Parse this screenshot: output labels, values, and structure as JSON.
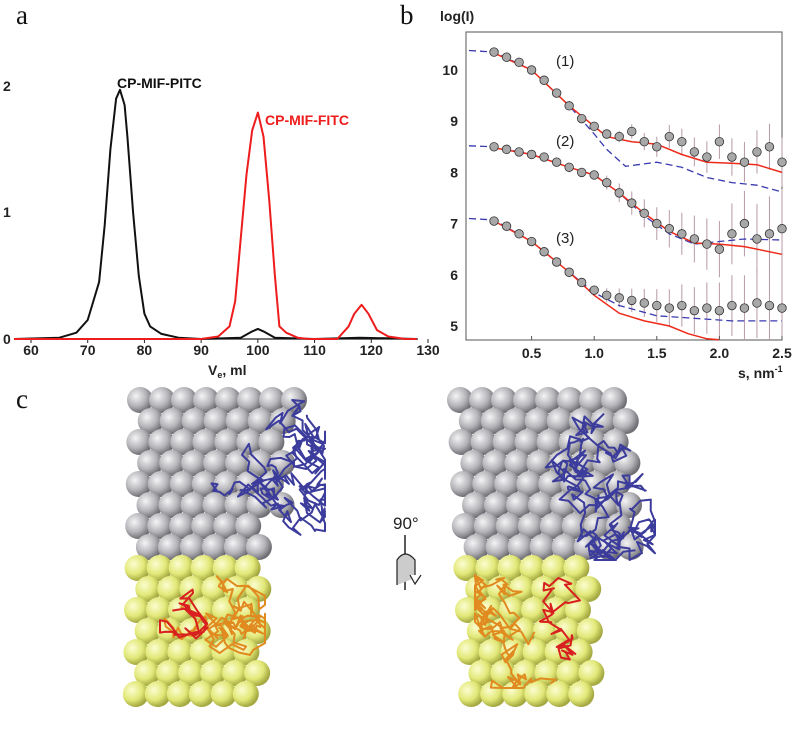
{
  "panels": {
    "a": "a",
    "b": "b",
    "c": "c"
  },
  "rotation_label": "90°",
  "chart_data": [
    {
      "type": "line",
      "panel": "a",
      "xlabel": "V",
      "xlabel_sub": "e",
      "xlabel_unit": ", ml",
      "ylabel": "",
      "xlim": [
        57,
        128
      ],
      "ylim": [
        0,
        2
      ],
      "xticks": [
        60,
        70,
        80,
        90,
        100,
        110,
        120,
        130
      ],
      "yticks": [
        0,
        1,
        2
      ],
      "grid": false,
      "series": [
        {
          "name": "CP-MIF-PITC",
          "color": "#111111",
          "points": [
            [
              57,
              0
            ],
            [
              65,
              0.01
            ],
            [
              68,
              0.05
            ],
            [
              70,
              0.15
            ],
            [
              72,
              0.45
            ],
            [
              73,
              0.9
            ],
            [
              74,
              1.5
            ],
            [
              75,
              1.9
            ],
            [
              75.7,
              1.97
            ],
            [
              76.5,
              1.85
            ],
            [
              77,
              1.6
            ],
            [
              78,
              1.0
            ],
            [
              79,
              0.5
            ],
            [
              80,
              0.2
            ],
            [
              81,
              0.1
            ],
            [
              83,
              0.04
            ],
            [
              86,
              0.01
            ],
            [
              90,
              0
            ],
            [
              97,
              0.01
            ],
            [
              99,
              0.06
            ],
            [
              100,
              0.08
            ],
            [
              101,
              0.06
            ],
            [
              103,
              0.01
            ],
            [
              110,
              0
            ],
            [
              118,
              0.01
            ],
            [
              128,
              0
            ]
          ]
        },
        {
          "name": "CP-MIF-FITC",
          "color": "#ee1c1c",
          "points": [
            [
              57,
              0
            ],
            [
              90,
              0
            ],
            [
              93,
              0.02
            ],
            [
              95,
              0.1
            ],
            [
              96,
              0.3
            ],
            [
              97,
              0.8
            ],
            [
              98,
              1.3
            ],
            [
              99,
              1.65
            ],
            [
              100,
              1.79
            ],
            [
              101,
              1.6
            ],
            [
              102,
              1.1
            ],
            [
              103,
              0.5
            ],
            [
              103.8,
              0.1
            ],
            [
              105,
              0.05
            ],
            [
              107,
              0.01
            ],
            [
              109,
              0
            ],
            [
              114,
              0
            ],
            [
              116,
              0.1
            ],
            [
              117,
              0.2
            ],
            [
              118.3,
              0.27
            ],
            [
              119.5,
              0.2
            ],
            [
              121,
              0.07
            ],
            [
              123,
              0.02
            ],
            [
              126,
              0
            ],
            [
              128,
              0
            ]
          ]
        }
      ]
    },
    {
      "type": "scatter",
      "panel": "b",
      "ylabel": "log(I)",
      "xlabel": "s, nm",
      "xlabel_sup": "-1",
      "xlim": [
        0,
        2.5
      ],
      "ylim": [
        4.73,
        10.74
      ],
      "xticks": [
        "0.5",
        "1.0",
        "1.5",
        "2.0",
        "2.5"
      ],
      "yticks": [
        5,
        6,
        7,
        8,
        9,
        10
      ],
      "grid": false,
      "curves": [
        {
          "label": "(1)",
          "points": [
            [
              0.2,
              10.35
            ],
            [
              0.3,
              10.25
            ],
            [
              0.4,
              10.15
            ],
            [
              0.5,
              10.0
            ],
            [
              0.6,
              9.8
            ],
            [
              0.7,
              9.55
            ],
            [
              0.8,
              9.3
            ],
            [
              0.9,
              9.05
            ],
            [
              1.0,
              8.9
            ],
            [
              1.1,
              8.75
            ],
            [
              1.2,
              8.7
            ],
            [
              1.3,
              8.8
            ],
            [
              1.4,
              8.6
            ],
            [
              1.5,
              8.5
            ],
            [
              1.6,
              8.7
            ],
            [
              1.7,
              8.6
            ],
            [
              1.8,
              8.4
            ],
            [
              1.9,
              8.3
            ],
            [
              2.0,
              8.6
            ],
            [
              2.1,
              8.3
            ],
            [
              2.2,
              8.2
            ],
            [
              2.3,
              8.4
            ],
            [
              2.4,
              8.5
            ],
            [
              2.5,
              8.2
            ]
          ],
          "fit_solid": [
            [
              0.2,
              10.33
            ],
            [
              0.5,
              10.0
            ],
            [
              0.8,
              9.3
            ],
            [
              1.0,
              8.9
            ],
            [
              1.1,
              8.7
            ],
            [
              1.3,
              8.6
            ],
            [
              1.5,
              8.55
            ],
            [
              1.7,
              8.35
            ],
            [
              1.9,
              8.2
            ],
            [
              2.1,
              8.18
            ],
            [
              2.3,
              8.15
            ],
            [
              2.5,
              8.0
            ]
          ],
          "fit_dashed": [
            [
              0,
              10.38
            ],
            [
              0.2,
              10.35
            ],
            [
              0.5,
              10.0
            ],
            [
              0.8,
              9.3
            ],
            [
              1.0,
              8.75
            ],
            [
              1.1,
              8.45
            ],
            [
              1.25,
              8.12
            ],
            [
              1.35,
              8.15
            ],
            [
              1.5,
              8.2
            ],
            [
              1.7,
              8.1
            ],
            [
              1.9,
              7.9
            ],
            [
              2.1,
              7.8
            ],
            [
              2.3,
              7.75
            ],
            [
              2.5,
              7.62
            ]
          ]
        },
        {
          "label": "(2)",
          "points": [
            [
              0.2,
              8.5
            ],
            [
              0.3,
              8.45
            ],
            [
              0.4,
              8.4
            ],
            [
              0.5,
              8.35
            ],
            [
              0.6,
              8.3
            ],
            [
              0.7,
              8.2
            ],
            [
              0.8,
              8.1
            ],
            [
              0.9,
              8.0
            ],
            [
              1.0,
              7.95
            ],
            [
              1.1,
              7.8
            ],
            [
              1.2,
              7.6
            ],
            [
              1.3,
              7.4
            ],
            [
              1.4,
              7.2
            ],
            [
              1.5,
              7.0
            ],
            [
              1.6,
              6.9
            ],
            [
              1.7,
              6.8
            ],
            [
              1.8,
              6.7
            ],
            [
              1.9,
              6.6
            ],
            [
              2.0,
              6.5
            ],
            [
              2.1,
              6.8
            ],
            [
              2.2,
              7.0
            ],
            [
              2.3,
              6.7
            ],
            [
              2.4,
              6.8
            ],
            [
              2.5,
              6.9
            ]
          ],
          "fit_solid": [
            [
              0.2,
              8.48
            ],
            [
              0.5,
              8.35
            ],
            [
              0.8,
              8.1
            ],
            [
              1.0,
              7.95
            ],
            [
              1.2,
              7.6
            ],
            [
              1.4,
              7.2
            ],
            [
              1.6,
              6.85
            ],
            [
              1.8,
              6.62
            ],
            [
              2.0,
              6.6
            ],
            [
              2.2,
              6.55
            ],
            [
              2.5,
              6.4
            ]
          ],
          "fit_dashed": [
            [
              0,
              8.52
            ],
            [
              0.2,
              8.5
            ],
            [
              0.5,
              8.35
            ],
            [
              0.8,
              8.1
            ],
            [
              1.0,
              7.95
            ],
            [
              1.2,
              7.6
            ],
            [
              1.4,
              7.15
            ],
            [
              1.6,
              6.8
            ],
            [
              1.8,
              6.6
            ],
            [
              2.0,
              6.65
            ],
            [
              2.2,
              6.7
            ],
            [
              2.5,
              6.68
            ]
          ]
        },
        {
          "label": "(3)",
          "points": [
            [
              0.2,
              7.05
            ],
            [
              0.3,
              6.95
            ],
            [
              0.4,
              6.8
            ],
            [
              0.5,
              6.65
            ],
            [
              0.6,
              6.45
            ],
            [
              0.7,
              6.25
            ],
            [
              0.8,
              6.05
            ],
            [
              0.9,
              5.85
            ],
            [
              1.0,
              5.7
            ],
            [
              1.1,
              5.6
            ],
            [
              1.2,
              5.55
            ],
            [
              1.3,
              5.5
            ],
            [
              1.4,
              5.45
            ],
            [
              1.5,
              5.4
            ],
            [
              1.6,
              5.35
            ],
            [
              1.7,
              5.4
            ],
            [
              1.8,
              5.3
            ],
            [
              1.9,
              5.35
            ],
            [
              2.0,
              5.3
            ],
            [
              2.1,
              5.4
            ],
            [
              2.2,
              5.35
            ],
            [
              2.3,
              5.45
            ],
            [
              2.4,
              5.4
            ],
            [
              2.5,
              5.35
            ]
          ],
          "fit_solid": [
            [
              0.2,
              7.05
            ],
            [
              0.5,
              6.65
            ],
            [
              0.8,
              6.05
            ],
            [
              1.0,
              5.6
            ],
            [
              1.2,
              5.25
            ],
            [
              1.4,
              5.1
            ],
            [
              1.6,
              5.0
            ],
            [
              1.75,
              4.85
            ],
            [
              1.9,
              4.75
            ],
            [
              2.0,
              4.73
            ]
          ],
          "fit_dashed": [
            [
              0,
              7.1
            ],
            [
              0.2,
              7.07
            ],
            [
              0.5,
              6.65
            ],
            [
              0.8,
              6.05
            ],
            [
              1.0,
              5.65
            ],
            [
              1.2,
              5.4
            ],
            [
              1.5,
              5.2
            ],
            [
              1.8,
              5.15
            ],
            [
              2.1,
              5.1
            ],
            [
              2.5,
              5.1
            ]
          ]
        }
      ],
      "colors": {
        "points": "#a8a8a8",
        "fit_solid": "#ee2a1a",
        "fit_dashed": "#3a3ab0",
        "error_bars": "#b79aa8"
      }
    }
  ],
  "model_colors": {
    "spheres_top": "#b4b4b8",
    "spheres_bottom": "#e6ec80",
    "backbone_top": "#3c3c9c",
    "backbone_bottom": "#e08a20",
    "backbone_accent": "#d82020"
  }
}
